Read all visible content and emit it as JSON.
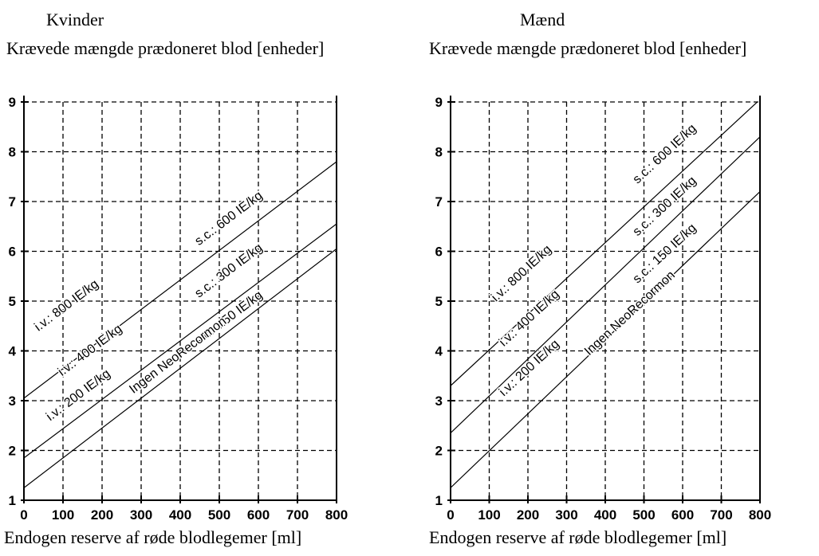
{
  "chart_data": [
    {
      "type": "line",
      "title": "Kvinder",
      "ylabel": "Krævede mængde prædoneret blod [enheder]",
      "xlabel": "Endogen reserve af røde blodlegemer [ml]",
      "xlim": [
        0,
        800
      ],
      "ylim": [
        1,
        9
      ],
      "xticks": [
        0,
        100,
        200,
        300,
        400,
        500,
        600,
        700,
        800
      ],
      "yticks": [
        1,
        2,
        3,
        4,
        5,
        6,
        7,
        8,
        9
      ],
      "grid": true,
      "series": [
        {
          "x": [
            0,
            800
          ],
          "y": [
            3.05,
            7.8
          ]
        },
        {
          "x": [
            0,
            800
          ],
          "y": [
            1.85,
            6.55
          ]
        },
        {
          "x": [
            0,
            800
          ],
          "y": [
            1.25,
            6.05
          ]
        }
      ],
      "annotations": [
        {
          "text": "i.v.: 800 IE/kg",
          "x": 115,
          "y": 4.85
        },
        {
          "text": "i.v.: 400 IE/kg",
          "x": 175,
          "y": 3.95
        },
        {
          "text": "i.v.: 200 IE/kg",
          "x": 145,
          "y": 3.05
        },
        {
          "text": "s.c.: 600 IE/kg",
          "x": 530,
          "y": 6.6
        },
        {
          "text": "s.c.: 300 IE/kg",
          "x": 530,
          "y": 5.55
        },
        {
          "text": "s.c.: 150 IE/kg",
          "x": 530,
          "y": 4.6
        },
        {
          "text": "Ingen NeoRecormon",
          "x": 400,
          "y": 3.85
        }
      ]
    },
    {
      "type": "line",
      "title": "Mænd",
      "ylabel": "Krævede mængde prædoneret blod [enheder]",
      "xlabel": "Endogen reserve af røde blodlegemer [ml]",
      "xlim": [
        0,
        800
      ],
      "ylim": [
        1,
        9
      ],
      "xticks": [
        0,
        100,
        200,
        300,
        400,
        500,
        600,
        700,
        800
      ],
      "yticks": [
        1,
        2,
        3,
        4,
        5,
        6,
        7,
        8,
        9
      ],
      "grid": true,
      "series": [
        {
          "x": [
            0,
            800
          ],
          "y": [
            3.3,
            9.05
          ]
        },
        {
          "x": [
            0,
            800
          ],
          "y": [
            2.35,
            8.3
          ]
        },
        {
          "x": [
            0,
            800
          ],
          "y": [
            1.25,
            7.2
          ]
        }
      ],
      "annotations": [
        {
          "text": "i.v.: 800 IE/kg",
          "x": 190,
          "y": 5.5
        },
        {
          "text": "i.v.: 400 IE/kg",
          "x": 210,
          "y": 4.6
        },
        {
          "text": "i.v.: 200 IE/kg",
          "x": 210,
          "y": 3.6
        },
        {
          "text": "s.c.: 600 IE/kg",
          "x": 560,
          "y": 7.9
        },
        {
          "text": "s.c.: 300 IE/kg",
          "x": 560,
          "y": 6.85
        },
        {
          "text": "s.c.: 150 IE/kg",
          "x": 560,
          "y": 5.9
        },
        {
          "text": "Ingen NeoRecormon",
          "x": 470,
          "y": 4.7
        }
      ]
    }
  ]
}
